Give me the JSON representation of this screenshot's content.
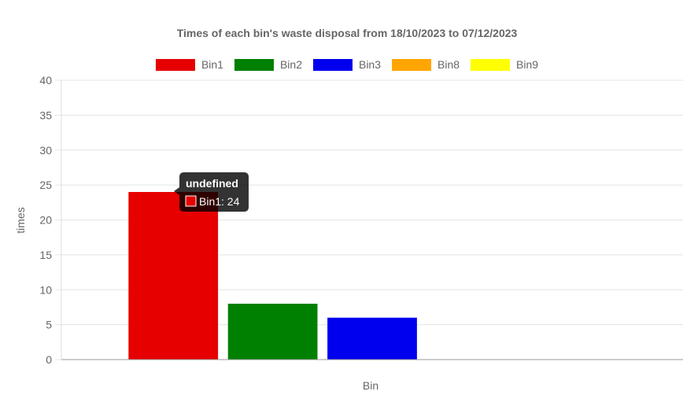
{
  "chart_data": {
    "type": "bar",
    "title": "Times of each bin's waste disposal from 18/10/2023 to 07/12/2023",
    "xlabel": "Bin",
    "ylabel": "times",
    "ylim": [
      0,
      40
    ],
    "yticks": [
      0,
      5,
      10,
      15,
      20,
      25,
      30,
      35,
      40
    ],
    "grid": true,
    "legend_position": "top",
    "series": [
      {
        "name": "Bin1",
        "value": 24,
        "color": "#e60000"
      },
      {
        "name": "Bin2",
        "value": 8,
        "color": "#008000"
      },
      {
        "name": "Bin3",
        "value": 6,
        "color": "#0000ee"
      },
      {
        "name": "Bin8",
        "value": 0,
        "color": "#ffa500"
      },
      {
        "name": "Bin9",
        "value": 0,
        "color": "#ffff00"
      }
    ]
  },
  "tooltip": {
    "title": "undefined",
    "label": "Bin1: 24",
    "color": "#e60000"
  }
}
